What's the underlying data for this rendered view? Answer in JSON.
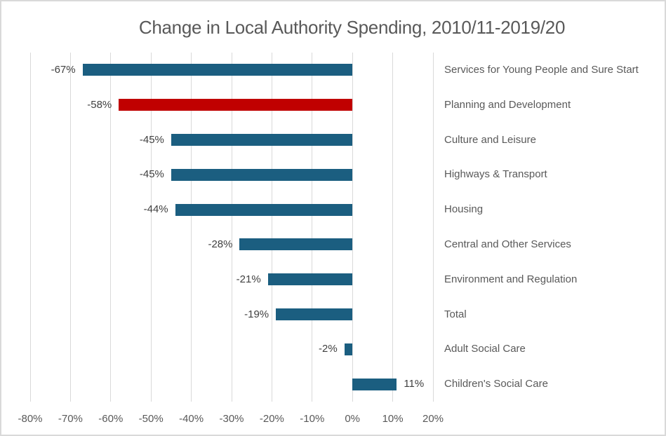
{
  "chart_data": {
    "type": "bar",
    "orientation": "horizontal",
    "title": "Change in Local Authority Spending, 2010/11-2019/20",
    "categories": [
      "Services for Young People and Sure Start",
      "Planning and Development",
      "Culture and Leisure",
      "Highways & Transport",
      "Housing",
      "Central and Other Services",
      "Environment and Regulation",
      "Total",
      "Adult Social Care",
      "Children's Social Care"
    ],
    "values": [
      -67,
      -58,
      -45,
      -45,
      -44,
      -28,
      -21,
      -19,
      -2,
      11
    ],
    "data_labels": [
      "-67%",
      "-58%",
      "-45%",
      "-45%",
      "-44%",
      "-28%",
      "-21%",
      "-19%",
      "-2%",
      "11%"
    ],
    "bar_colors": [
      "#1B5E80",
      "#C00000",
      "#1B5E80",
      "#1B5E80",
      "#1B5E80",
      "#1B5E80",
      "#1B5E80",
      "#1B5E80",
      "#1B5E80",
      "#1B5E80"
    ],
    "xlim": [
      -80,
      20
    ],
    "x_tick_values": [
      -80,
      -70,
      -60,
      -50,
      -40,
      -30,
      -20,
      -10,
      0,
      10,
      20
    ],
    "x_ticks": [
      "-80%",
      "-70%",
      "-60%",
      "-50%",
      "-40%",
      "-30%",
      "-20%",
      "-10%",
      "0%",
      "10%",
      "20%"
    ],
    "grid": "vertical-only",
    "legend": "none",
    "value_label_position": "outside-end",
    "category_label_position": "right-of-plot",
    "colors": {
      "bar_default": "#1B5E80",
      "bar_highlight": "#C00000",
      "gridline": "#D9D9D9",
      "frame_border": "#D9D9D9",
      "title_text": "#595959",
      "axis_text": "#595959",
      "category_text": "#595959",
      "value_text": "#404040",
      "background": "#FFFFFF"
    }
  }
}
